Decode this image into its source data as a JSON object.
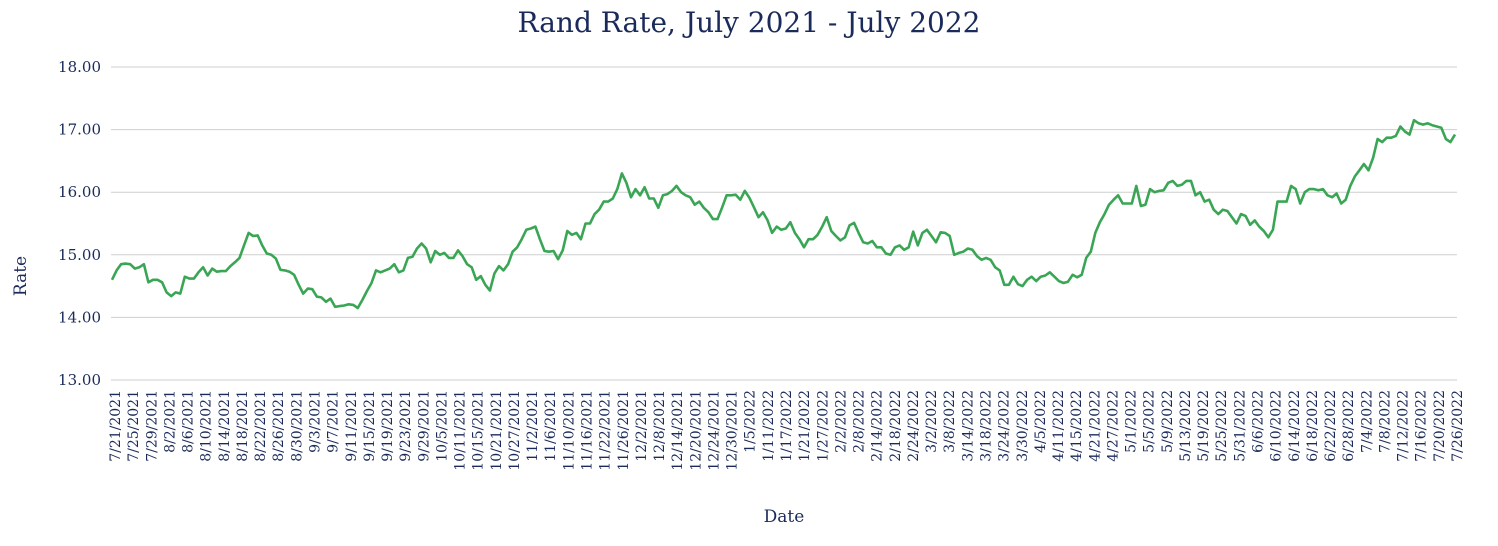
{
  "chart_data": {
    "type": "line",
    "title": "Rand Rate, July 2021 - July 2022",
    "xlabel": "Date",
    "ylabel": "Rate",
    "ylim": [
      13.0,
      18.0
    ],
    "yticks": [
      "13.00",
      "14.00",
      "15.00",
      "16.00",
      "17.00",
      "18.00"
    ],
    "grid": true,
    "line_color": "#3aa655",
    "x_tick_labels": [
      "7/21/2021",
      "7/25/2021",
      "7/29/2021",
      "8/2/2021",
      "8/6/2021",
      "8/10/2021",
      "8/14/2021",
      "8/18/2021",
      "8/22/2021",
      "8/26/2021",
      "8/30/2021",
      "9/3/2021",
      "9/7/2021",
      "9/11/2021",
      "9/15/2021",
      "9/19/2021",
      "9/23/2021",
      "9/29/2021",
      "10/5/2021",
      "10/11/2021",
      "10/15/2021",
      "10/21/2021",
      "10/27/2021",
      "11/2/2021",
      "11/6/2021",
      "11/10/2021",
      "11/16/2021",
      "11/22/2021",
      "11/26/2021",
      "12/2/2021",
      "12/8/2021",
      "12/14/2021",
      "12/20/2021",
      "12/24/2021",
      "12/30/2021",
      "1/5/2022",
      "1/11/2022",
      "1/17/2022",
      "1/21/2022",
      "1/27/2022",
      "2/2/2022",
      "2/8/2022",
      "2/14/2022",
      "2/18/2022",
      "2/24/2022",
      "3/2/2022",
      "3/8/2022",
      "3/14/2022",
      "3/18/2022",
      "3/24/2022",
      "3/30/2022",
      "4/5/2022",
      "4/11/2022",
      "4/15/2022",
      "4/21/2022",
      "4/27/2022",
      "5/1/2022",
      "5/5/2022",
      "5/9/2022",
      "5/13/2022",
      "5/19/2022",
      "5/25/2022",
      "5/31/2022",
      "6/6/2022",
      "6/10/2022",
      "6/14/2022",
      "6/18/2022",
      "6/22/2022",
      "6/28/2022",
      "7/4/2022",
      "7/8/2022",
      "7/12/2022",
      "7/16/2022",
      "7/20/2022",
      "7/26/2022"
    ],
    "values": [
      14.6,
      14.75,
      14.85,
      14.86,
      14.85,
      14.78,
      14.8,
      14.85,
      14.56,
      14.6,
      14.6,
      14.56,
      14.4,
      14.34,
      14.4,
      14.38,
      14.65,
      14.62,
      14.62,
      14.72,
      14.8,
      14.67,
      14.78,
      14.73,
      14.74,
      14.74,
      14.82,
      14.88,
      14.95,
      15.15,
      15.35,
      15.3,
      15.31,
      15.15,
      15.02,
      15.0,
      14.94,
      14.76,
      14.75,
      14.73,
      14.68,
      14.52,
      14.38,
      14.46,
      14.45,
      14.33,
      14.32,
      14.25,
      14.3,
      14.17,
      14.18,
      14.19,
      14.21,
      14.2,
      14.15,
      14.28,
      14.42,
      14.55,
      14.75,
      14.72,
      14.75,
      14.78,
      14.85,
      14.72,
      14.75,
      14.95,
      14.97,
      15.1,
      15.18,
      15.1,
      14.88,
      15.06,
      15.0,
      15.03,
      14.95,
      14.95,
      15.07,
      14.98,
      14.85,
      14.8,
      14.6,
      14.66,
      14.52,
      14.43,
      14.7,
      14.82,
      14.75,
      14.85,
      15.05,
      15.12,
      15.25,
      15.4,
      15.42,
      15.45,
      15.25,
      15.06,
      15.05,
      15.06,
      14.93,
      15.07,
      15.38,
      15.32,
      15.35,
      15.25,
      15.5,
      15.5,
      15.65,
      15.72,
      15.85,
      15.85,
      15.9,
      16.05,
      16.3,
      16.15,
      15.92,
      16.05,
      15.95,
      16.08,
      15.9,
      15.9,
      15.75,
      15.95,
      15.97,
      16.02,
      16.1,
      16.0,
      15.95,
      15.92,
      15.8,
      15.85,
      15.75,
      15.68,
      15.57,
      15.57,
      15.75,
      15.95,
      15.95,
      15.96,
      15.88,
      16.02,
      15.91,
      15.76,
      15.6,
      15.68,
      15.55,
      15.35,
      15.45,
      15.4,
      15.42,
      15.52,
      15.35,
      15.25,
      15.12,
      15.25,
      15.25,
      15.32,
      15.45,
      15.6,
      15.38,
      15.3,
      15.23,
      15.28,
      15.47,
      15.51,
      15.35,
      15.2,
      15.18,
      15.22,
      15.12,
      15.12,
      15.02,
      15.0,
      15.12,
      15.15,
      15.08,
      15.12,
      15.37,
      15.15,
      15.35,
      15.4,
      15.3,
      15.2,
      15.36,
      15.35,
      15.3,
      15.0,
      15.03,
      15.05,
      15.1,
      15.08,
      14.98,
      14.92,
      14.95,
      14.92,
      14.8,
      14.75,
      14.52,
      14.52,
      14.65,
      14.53,
      14.5,
      14.6,
      14.65,
      14.58,
      14.65,
      14.67,
      14.72,
      14.65,
      14.58,
      14.55,
      14.57,
      14.68,
      14.64,
      14.68,
      14.95,
      15.05,
      15.35,
      15.52,
      15.65,
      15.8,
      15.88,
      15.95,
      15.82,
      15.82,
      15.82,
      16.1,
      15.78,
      15.8,
      16.05,
      16.0,
      16.02,
      16.03,
      16.15,
      16.18,
      16.1,
      16.12,
      16.18,
      16.18,
      15.95,
      16.0,
      15.85,
      15.88,
      15.72,
      15.65,
      15.72,
      15.7,
      15.6,
      15.5,
      15.65,
      15.62,
      15.48,
      15.55,
      15.45,
      15.38,
      15.28,
      15.4,
      15.85,
      15.85,
      15.85,
      16.1,
      16.05,
      15.82,
      16.0,
      16.05,
      16.05,
      16.03,
      16.05,
      15.95,
      15.92,
      15.98,
      15.82,
      15.88,
      16.1,
      16.25,
      16.35,
      16.45,
      16.35,
      16.55,
      16.85,
      16.8,
      16.87,
      16.87,
      16.9,
      17.05,
      16.97,
      16.92,
      17.15,
      17.1,
      17.08,
      17.1,
      17.07,
      17.05,
      17.03,
      16.85,
      16.8,
      16.92
    ]
  }
}
